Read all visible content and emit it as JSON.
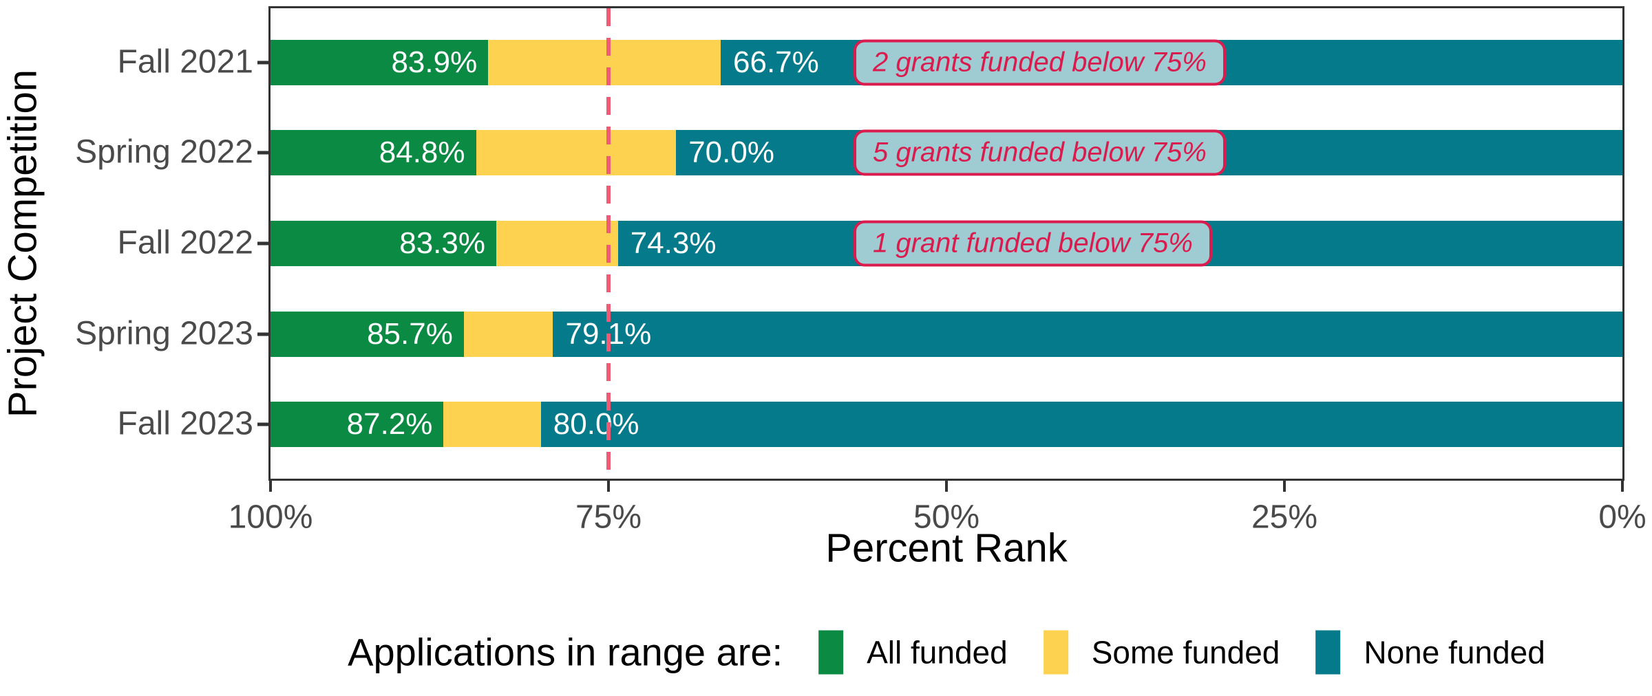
{
  "chart_data": {
    "type": "bar",
    "orientation": "horizontal-stacked",
    "xlabel": "Percent Rank",
    "ylabel": "Project Competition",
    "x_axis": {
      "reversed": true,
      "range": [
        100,
        0
      ],
      "ticks": [
        {
          "label": "100%",
          "value": 100
        },
        {
          "label": "75%",
          "value": 75
        },
        {
          "label": "50%",
          "value": 50
        },
        {
          "label": "25%",
          "value": 25
        },
        {
          "label": "0%",
          "value": 0
        }
      ]
    },
    "categories": [
      "Fall 2021",
      "Spring 2022",
      "Fall 2022",
      "Spring 2023",
      "Fall 2023"
    ],
    "rows": [
      {
        "category": "Fall 2021",
        "all_funded_until": 83.9,
        "none_funded_from": 66.7,
        "green_label": "83.9%",
        "teal_label": "66.7%",
        "annotation": "2 grants funded below 75%"
      },
      {
        "category": "Spring 2022",
        "all_funded_until": 84.8,
        "none_funded_from": 70.0,
        "green_label": "84.8%",
        "teal_label": "70.0%",
        "annotation": "5 grants funded below 75%"
      },
      {
        "category": "Fall 2022",
        "all_funded_until": 83.3,
        "none_funded_from": 74.3,
        "green_label": "83.3%",
        "teal_label": "74.3%",
        "annotation": "1 grant funded below 75%"
      },
      {
        "category": "Spring 2023",
        "all_funded_until": 85.7,
        "none_funded_from": 79.1,
        "green_label": "85.7%",
        "teal_label": "79.1%",
        "annotation": null
      },
      {
        "category": "Fall 2023",
        "all_funded_until": 87.2,
        "none_funded_from": 80.0,
        "green_label": "87.2%",
        "teal_label": "80.0%",
        "annotation": null
      }
    ],
    "reference_line": {
      "value": 75,
      "style": "dashed"
    },
    "grid": false,
    "legend_position": "bottom"
  },
  "legend": {
    "title": "Applications in range are:",
    "items": [
      {
        "label": "All funded",
        "color": "#0b8a43"
      },
      {
        "label": "Some funded",
        "color": "#fdd250"
      },
      {
        "label": "None funded",
        "color": "#047a8a"
      }
    ]
  },
  "colors": {
    "all_funded": "#0b8a43",
    "some_funded": "#fdd250",
    "none_funded": "#047a8a",
    "annotation_text": "#d91b4e",
    "annotation_border": "#d91b4e",
    "reference_line": "#ef5a75",
    "axis_text": "#4a4a4a",
    "panel_border": "#333333",
    "bar_label_text": "#ffffff"
  }
}
